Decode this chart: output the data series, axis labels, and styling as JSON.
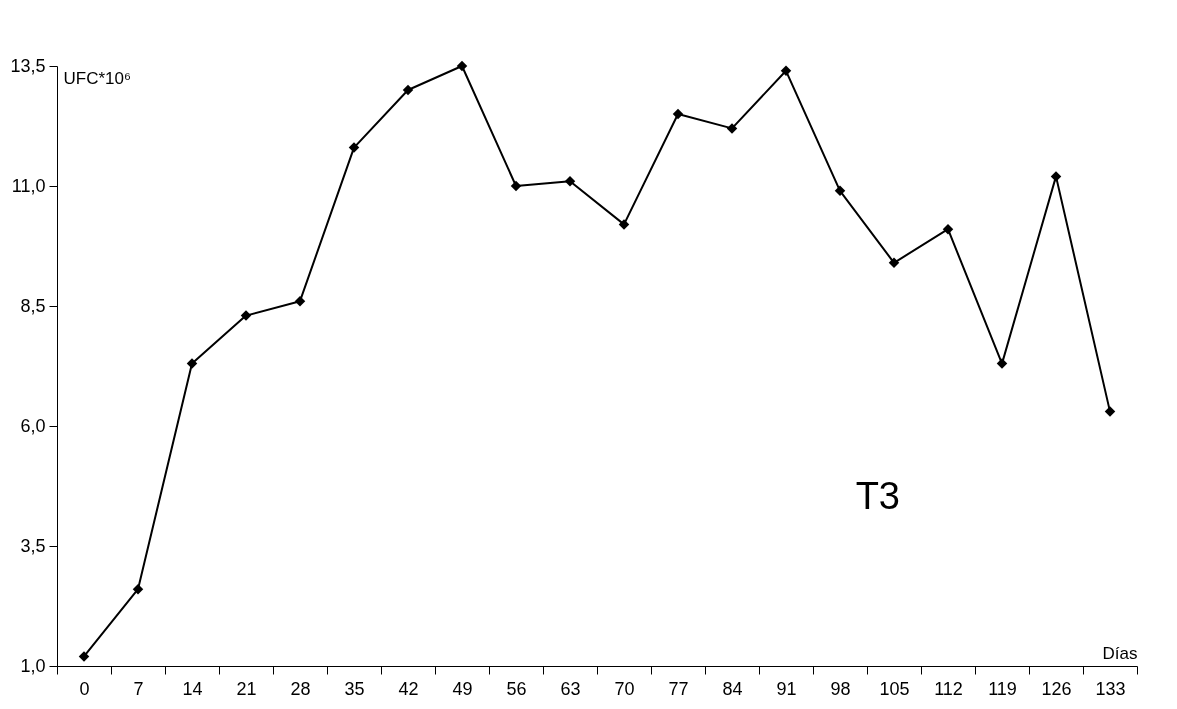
{
  "chart_data": {
    "type": "line",
    "xlabel": "Días",
    "ylabel": "UFC*10⁶",
    "categories": [
      "0",
      "7",
      "14",
      "21",
      "28",
      "35",
      "42",
      "49",
      "56",
      "63",
      "70",
      "77",
      "84",
      "91",
      "98",
      "105",
      "112",
      "119",
      "126",
      "133"
    ],
    "series": [
      {
        "color": "#000000",
        "values": [
          1.2,
          2.6,
          7.3,
          8.3,
          8.6,
          11.8,
          13.0,
          13.5,
          11.0,
          11.1,
          10.2,
          12.5,
          12.2,
          13.4,
          10.9,
          9.4,
          10.1,
          7.3,
          11.2,
          6.3
        ]
      }
    ],
    "ylim": [
      1.0,
      13.5
    ],
    "yticks": [
      {
        "value": 1.0,
        "label": "1,0"
      },
      {
        "value": 3.5,
        "label": "3,5"
      },
      {
        "value": 6.0,
        "label": "6,0"
      },
      {
        "value": 8.5,
        "label": "8,5"
      },
      {
        "value": 11.0,
        "label": "11,0"
      },
      {
        "value": 13.5,
        "label": "13,5"
      }
    ],
    "annotations": [
      "T3"
    ],
    "marker": "diamond",
    "line_style": "solid"
  }
}
